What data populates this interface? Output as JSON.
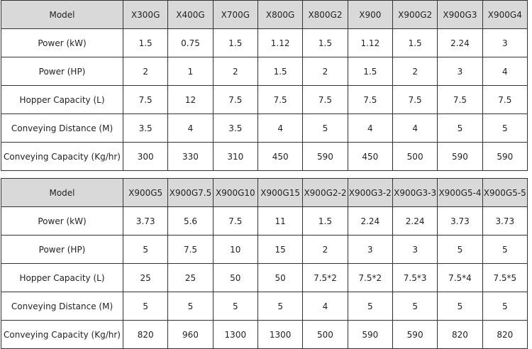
{
  "tables": [
    {
      "rows": [
        [
          "Model",
          "X300G",
          "X400G",
          "X700G",
          "X800G",
          "X800G2",
          "X900",
          "X900G2",
          "X900G3",
          "X900G4"
        ],
        [
          "Power (kW)",
          "1.5",
          "0.75",
          "1.5",
          "1.12",
          "1.5",
          "1.12",
          "1.5",
          "2.24",
          "3"
        ],
        [
          "Power (HP)",
          "2",
          "1",
          "2",
          "1.5",
          "2",
          "1.5",
          "2",
          "3",
          "4"
        ],
        [
          "Hopper Capacity (L)",
          "7.5",
          "12",
          "7.5",
          "7.5",
          "7.5",
          "7.5",
          "7.5",
          "7.5",
          "7.5"
        ],
        [
          "Conveying Distance (M)",
          "3.5",
          "4",
          "3.5",
          "4",
          "5",
          "4",
          "4",
          "5",
          "5"
        ],
        [
          "Conveying Capacity (Kg/hr)",
          "300",
          "330",
          "310",
          "450",
          "590",
          "450",
          "500",
          "590",
          "590"
        ]
      ]
    },
    {
      "rows": [
        [
          "Model",
          "X900G5",
          "X900G7.5",
          "X900G10",
          "X900G15",
          "X900G2-2",
          "X900G3-2",
          "X900G3-3",
          "X900G5-4",
          "X900G5-5"
        ],
        [
          "Power (kW)",
          "3.73",
          "5.6",
          "7.5",
          "11",
          "1.5",
          "2.24",
          "2.24",
          "3.73",
          "3.73"
        ],
        [
          "Power (HP)",
          "5",
          "7.5",
          "10",
          "15",
          "2",
          "3",
          "3",
          "5",
          "5"
        ],
        [
          "Hopper Capacity (L)",
          "25",
          "25",
          "50",
          "50",
          "7.5*2",
          "7.5*2",
          "7.5*3",
          "7.5*4",
          "7.5*5"
        ],
        [
          "Conveying Distance (M)",
          "5",
          "5",
          "5",
          "5",
          "4",
          "5",
          "5",
          "5",
          "5"
        ],
        [
          "Conveying Capacity (Kg/hr)",
          "820",
          "960",
          "1300",
          "1300",
          "500",
          "590",
          "590",
          "820",
          "820"
        ]
      ]
    }
  ],
  "colors": {
    "header_bg": "#d9d9d9",
    "border": "#333333"
  }
}
